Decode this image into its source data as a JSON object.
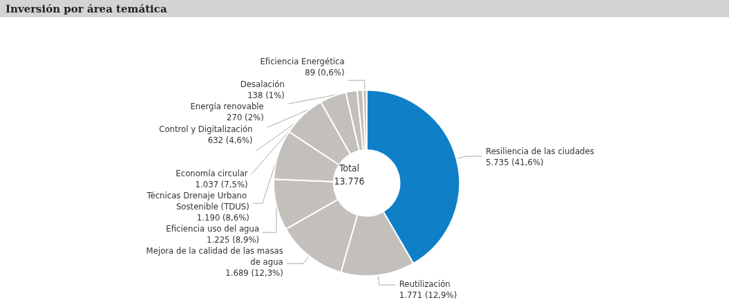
{
  "chart_data": {
    "type": "donut",
    "title": "Inversión por área temática",
    "categories": [
      "Resiliencia de las ciudades",
      "Reutilización",
      "Mejora de la calidad de las masas de agua",
      "Eficiencia uso del agua",
      "Técnicas Drenaje Urbano Sostenible (TDUS)",
      "Economía circular",
      "Control y Digitalización",
      "Energía renovable",
      "Desalación",
      "Eficiencia Energética"
    ],
    "values": [
      5735,
      1771,
      1689,
      1225,
      1190,
      1037,
      632,
      270,
      138,
      89
    ],
    "value_labels": [
      "5.735 (41,6%)",
      "1.771 (12,9%)",
      "1.689 (12,3%)",
      "1.225 (8,9%)",
      "1.190 (8,6%)",
      "1.037 (7,5%)",
      "632 (4,6%)",
      "270 (2%)",
      "138 (1%)",
      "89 (0,6%)"
    ],
    "colors": [
      "#0f7fc8",
      "#c3bfbb",
      "#c3bfbb",
      "#c3bfbb",
      "#c3bfbb",
      "#c3bfbb",
      "#c3bfbb",
      "#c3bfbb",
      "#c3bfbb",
      "#c3bfbb"
    ],
    "annotations": [
      "Total",
      "13.776"
    ]
  }
}
